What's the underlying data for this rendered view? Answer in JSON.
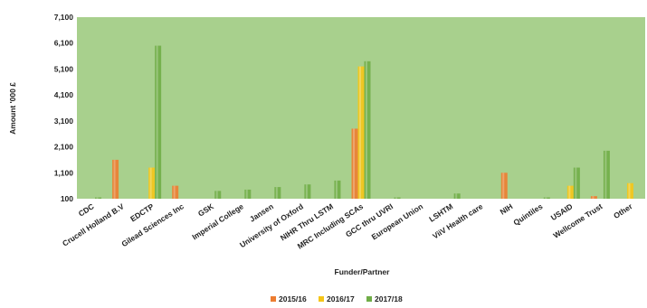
{
  "chart_data": {
    "type": "bar",
    "title": "",
    "xlabel": "Funder/Partner",
    "ylabel": "Amount '000 £",
    "ylim": [
      100,
      7100
    ],
    "yticks": [
      "100",
      "1,100",
      "2,100",
      "3,100",
      "4,100",
      "5,100",
      "6,100",
      "7,100"
    ],
    "grid": false,
    "legend_position": "bottom",
    "plot_background": "#a8d08d",
    "categories": [
      "CDC",
      "Crucell Holland B.V",
      "EDCTP",
      "Gilead Sciences Inc",
      "GSK",
      "Imperial College",
      "Jansen",
      "University of Oxford",
      "NIHR Thru LSTM",
      "MRC Including SCAs",
      "GCC thru UVRI",
      "European Union",
      "LSHTM",
      "ViiV Health care",
      "NIH",
      "Quintiles",
      "USAID",
      "Wellcome Trust",
      "Other"
    ],
    "series": [
      {
        "name": "2015/16",
        "color": "#ed7d31",
        "values": [
          100,
          1600,
          100,
          600,
          100,
          100,
          100,
          100,
          100,
          2800,
          100,
          100,
          100,
          100,
          1100,
          100,
          100,
          200,
          100
        ]
      },
      {
        "name": "2016/17",
        "color": "#f5c518",
        "values": [
          100,
          100,
          1300,
          100,
          100,
          100,
          100,
          100,
          100,
          5200,
          100,
          100,
          100,
          100,
          100,
          100,
          600,
          100,
          700
        ]
      },
      {
        "name": "2017/18",
        "color": "#70ad47",
        "values": [
          150,
          100,
          6000,
          100,
          400,
          450,
          550,
          650,
          800,
          5400,
          150,
          100,
          300,
          100,
          100,
          150,
          1300,
          1950,
          100
        ]
      }
    ]
  }
}
